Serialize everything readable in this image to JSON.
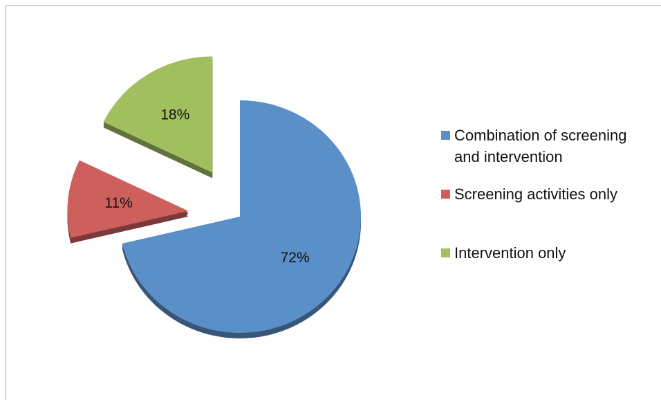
{
  "chart_data": {
    "type": "pie",
    "categories": [
      "Combination of screening and intervention",
      "Screening activities only",
      "Intervention only"
    ],
    "values": [
      72,
      11,
      18
    ],
    "value_labels": [
      "72%",
      "11%",
      "18%"
    ],
    "colors": [
      "#5b8fc8",
      "#cd605d",
      "#a2bf60"
    ],
    "legend": "right"
  }
}
